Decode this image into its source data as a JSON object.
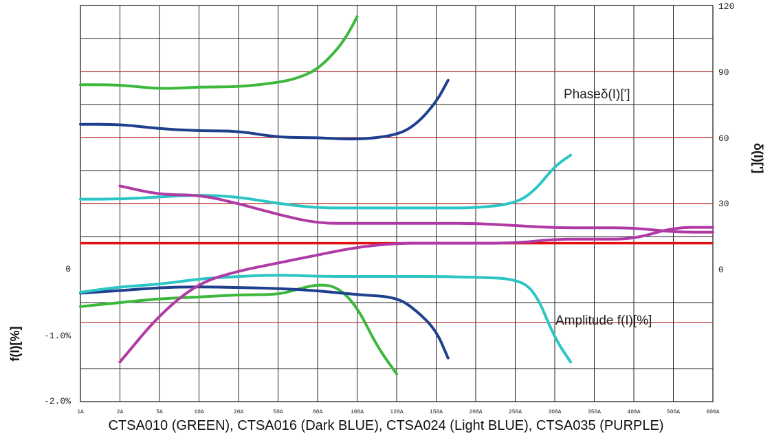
{
  "caption": "CTSA010 (GREEN), CTSA016 (Dark BLUE), CTSA024 (Light BLUE), CTSA035 (PURPLE)",
  "chart_data": {
    "type": "line",
    "x_ticks": [
      "1A",
      "2A",
      "5A",
      "10A",
      "20A",
      "50A",
      "80A",
      "100A",
      "120A",
      "150A",
      "200A",
      "250A",
      "300A",
      "350A",
      "400A",
      "500A",
      "600A"
    ],
    "left_axis": {
      "label": "f(I)[%]",
      "ticks": [
        "0",
        "-1.0%",
        "-2.0%"
      ],
      "range": [
        -2.0,
        3.0
      ]
    },
    "right_axis": {
      "label": "δ(I)[']",
      "ticks": [
        "120",
        "90",
        "60",
        "30",
        "0"
      ],
      "range": [
        -60,
        120
      ]
    },
    "annotations": {
      "phase": "Phaseδ(I)[']",
      "amplitude": "Amplitude f(I)[%]"
    },
    "grid": true,
    "colors": {
      "green": "#3cb83c",
      "dark_blue": "#1f3f8f",
      "light_blue": "#2cc4c4",
      "purple": "#b03aa5",
      "red_line": "#b22222",
      "zero_line": "#e31010"
    },
    "phase_series": [
      {
        "name": "CTSA010",
        "color": "#3cb83c",
        "points": [
          [
            0,
            84
          ],
          [
            1,
            84
          ],
          [
            2,
            82
          ],
          [
            3,
            83
          ],
          [
            4,
            83
          ],
          [
            5,
            85
          ],
          [
            5.5,
            87
          ],
          [
            6,
            91
          ],
          [
            6.5,
            100
          ],
          [
            6.8,
            108
          ],
          [
            7,
            115
          ]
        ]
      },
      {
        "name": "CTSA016",
        "color": "#1f3f8f",
        "points": [
          [
            0,
            66
          ],
          [
            1,
            66
          ],
          [
            2,
            64
          ],
          [
            3,
            63
          ],
          [
            4,
            63
          ],
          [
            5,
            60
          ],
          [
            6,
            60
          ],
          [
            7,
            59
          ],
          [
            8,
            61
          ],
          [
            8.5,
            66
          ],
          [
            9,
            76
          ],
          [
            9.3,
            86
          ]
        ]
      },
      {
        "name": "CTSA024",
        "color": "#2cc4c4",
        "points": [
          [
            0,
            32
          ],
          [
            1,
            32
          ],
          [
            2,
            33
          ],
          [
            3,
            34
          ],
          [
            4,
            33
          ],
          [
            5,
            30
          ],
          [
            6,
            28
          ],
          [
            7,
            28
          ],
          [
            8,
            28
          ],
          [
            9,
            28
          ],
          [
            10,
            28
          ],
          [
            11,
            30
          ],
          [
            11.5,
            36
          ],
          [
            12,
            47
          ],
          [
            12.4,
            52
          ]
        ]
      },
      {
        "name": "CTSA035",
        "color": "#b03aa5",
        "points": [
          [
            1,
            38
          ],
          [
            2,
            34
          ],
          [
            3,
            34
          ],
          [
            4,
            30
          ],
          [
            5,
            25
          ],
          [
            6,
            21
          ],
          [
            7,
            21
          ],
          [
            8,
            21
          ],
          [
            9,
            21
          ],
          [
            10,
            21
          ],
          [
            11,
            20
          ],
          [
            12,
            19
          ],
          [
            13,
            19
          ],
          [
            14,
            19
          ],
          [
            15,
            17
          ],
          [
            16,
            17
          ]
        ]
      }
    ],
    "amplitude_series": [
      {
        "name": "CTSA010",
        "color": "#3cb83c",
        "points": [
          [
            0,
            -0.8
          ],
          [
            1,
            -0.75
          ],
          [
            2,
            -0.7
          ],
          [
            3,
            -0.68
          ],
          [
            4,
            -0.65
          ],
          [
            5,
            -0.65
          ],
          [
            5.5,
            -0.58
          ],
          [
            6,
            -0.52
          ],
          [
            6.5,
            -0.55
          ],
          [
            7,
            -0.8
          ],
          [
            7.5,
            -1.3
          ],
          [
            8,
            -1.65
          ]
        ]
      },
      {
        "name": "CTSA016",
        "color": "#1f3f8f",
        "points": [
          [
            0,
            -0.63
          ],
          [
            1,
            -0.6
          ],
          [
            2,
            -0.56
          ],
          [
            3,
            -0.55
          ],
          [
            4,
            -0.56
          ],
          [
            5,
            -0.57
          ],
          [
            6,
            -0.6
          ],
          [
            7,
            -0.65
          ],
          [
            8,
            -0.68
          ],
          [
            8.5,
            -0.85
          ],
          [
            9,
            -1.1
          ],
          [
            9.3,
            -1.45
          ]
        ]
      },
      {
        "name": "CTSA024",
        "color": "#2cc4c4",
        "points": [
          [
            0,
            -0.62
          ],
          [
            1,
            -0.55
          ],
          [
            2,
            -0.52
          ],
          [
            3,
            -0.45
          ],
          [
            4,
            -0.42
          ],
          [
            5,
            -0.4
          ],
          [
            6,
            -0.42
          ],
          [
            7,
            -0.42
          ],
          [
            8,
            -0.42
          ],
          [
            9,
            -0.42
          ],
          [
            10,
            -0.43
          ],
          [
            11,
            -0.45
          ],
          [
            11.5,
            -0.6
          ],
          [
            12,
            -1.2
          ],
          [
            12.4,
            -1.5
          ]
        ]
      },
      {
        "name": "CTSA035",
        "color": "#b03aa5",
        "points": [
          [
            1,
            -1.5
          ],
          [
            2,
            -0.9
          ],
          [
            3,
            -0.5
          ],
          [
            4,
            -0.35
          ],
          [
            5,
            -0.25
          ],
          [
            6,
            -0.15
          ],
          [
            7,
            -0.05
          ],
          [
            8,
            0
          ],
          [
            9,
            0
          ],
          [
            10,
            0
          ],
          [
            11,
            0
          ],
          [
            12,
            0.05
          ],
          [
            13,
            0.05
          ],
          [
            14,
            0.05
          ],
          [
            15,
            0.2
          ],
          [
            16,
            0.2
          ]
        ]
      }
    ]
  }
}
